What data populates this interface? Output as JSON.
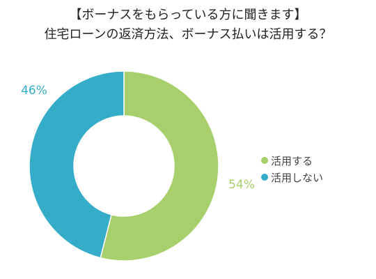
{
  "chart_data": {
    "type": "pie",
    "donut": true,
    "title": "【ボーナスをもらっている方に聞きます】",
    "subtitle": "住宅ローンの返済方法、ボーナス払いは活用する？",
    "categories": [
      "活用する",
      "活用しない"
    ],
    "values": [
      54,
      46
    ],
    "data_labels": [
      "54%",
      "46%"
    ],
    "colors": [
      "#a7cf6b",
      "#36adc8"
    ],
    "legend": "right"
  }
}
